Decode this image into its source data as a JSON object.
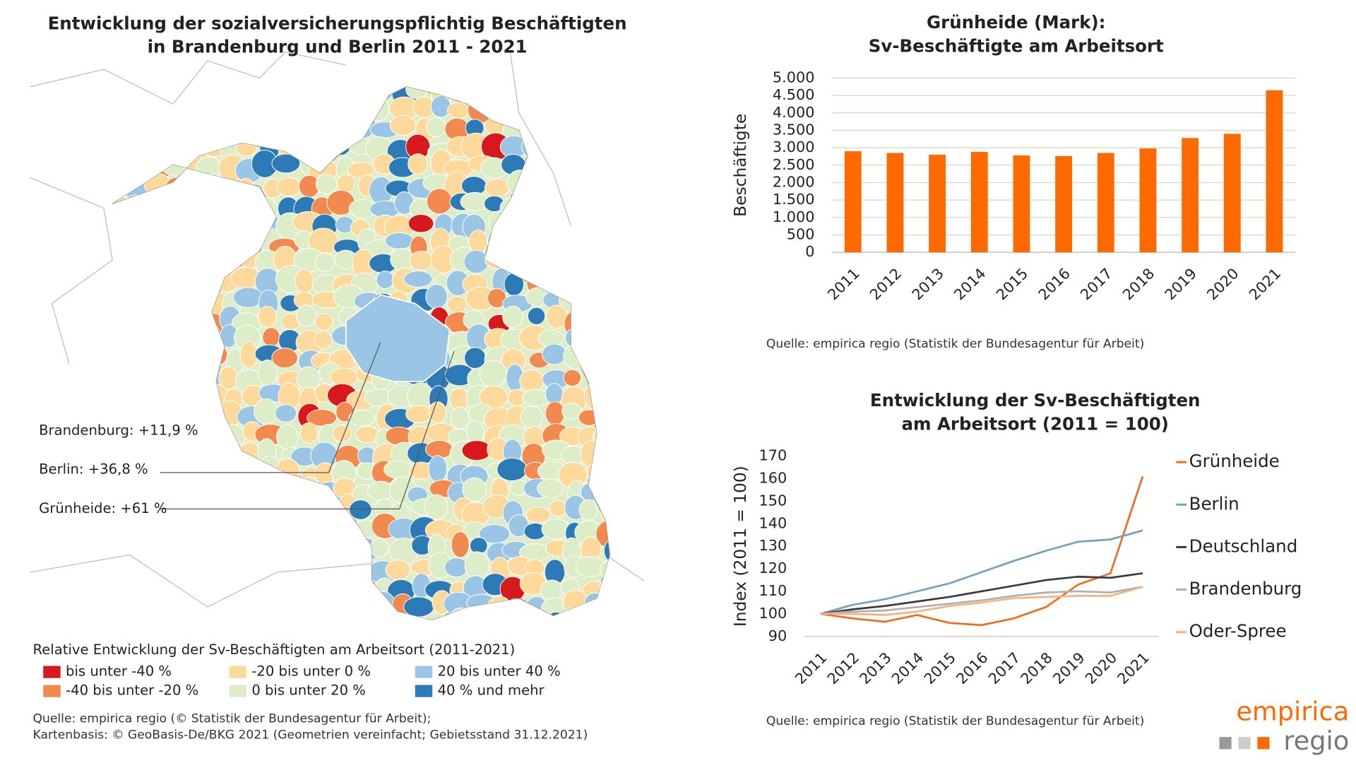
{
  "map": {
    "title": [
      "Entwicklung der sozialversicherungspflichtig Beschäftigten",
      "in Brandenburg und Berlin 2011 - 2021"
    ],
    "annotations": [
      "Brandenburg: +11,9 %",
      "Berlin: +36,8 %",
      "Grünheide: +61 %"
    ],
    "legend": {
      "title": "Relative Entwicklung der Sv-Beschäftigten am Arbeitsort (2011-2021)",
      "items": [
        {
          "label": "bis unter -40 %",
          "color": "#d7191c"
        },
        {
          "label": "-40 bis unter -20 %",
          "color": "#f28a50"
        },
        {
          "label": "-20 bis unter 0 %",
          "color": "#fdd99b"
        },
        {
          "label": "0 bis unter 20 %",
          "color": "#dcedc8"
        },
        {
          "label": "20 bis unter 40 %",
          "color": "#9ac5e5"
        },
        {
          "label": "40 % und mehr",
          "color": "#2c7bb6"
        }
      ]
    },
    "source": [
      "Quelle: empirica regio (© Statistik der Bundesagentur für Arbeit);",
      "Kartenbasis: © GeoBasis-De/BKG 2021 (Geometrien vereinfacht; Gebietsstand 31.12.2021)"
    ]
  },
  "chart_data": [
    {
      "type": "bar",
      "title": [
        "Grünheide (Mark):",
        "Sv-Beschäftigte am Arbeitsort"
      ],
      "y_label": "Beschäftigte",
      "categories": [
        "2011",
        "2012",
        "2013",
        "2014",
        "2015",
        "2016",
        "2017",
        "2018",
        "2019",
        "2020",
        "2021"
      ],
      "values": [
        2900,
        2850,
        2800,
        2880,
        2780,
        2760,
        2850,
        2980,
        3280,
        3400,
        4650
      ],
      "color": "#ff6a00",
      "ylim": [
        0,
        5000
      ],
      "yticks": [
        0,
        500,
        {
          "value": 1000,
          "label": "1.000"
        },
        {
          "value": 1500,
          "label": "1.500"
        },
        {
          "value": 2000,
          "label": "2.000"
        },
        {
          "value": 2500,
          "label": "2.500"
        },
        {
          "value": 3000,
          "label": "3.000"
        },
        {
          "value": 3500,
          "label": "3.500"
        },
        {
          "value": 4000,
          "label": "4.000"
        },
        {
          "value": 4500,
          "label": "4.500"
        },
        {
          "value": 5000,
          "label": "5.000"
        }
      ],
      "grid": true,
      "source": "Quelle: empirica regio (Statistik der Bundesagentur für Arbeit)"
    },
    {
      "type": "line",
      "title": [
        "Entwicklung der Sv-Beschäftigten",
        "am Arbeitsort (2011 = 100)"
      ],
      "y_label": "Index (2011 = 100)",
      "categories": [
        "2011",
        "2012",
        "2013",
        "2014",
        "2015",
        "2016",
        "2017",
        "2018",
        "2019",
        "2020",
        "2021"
      ],
      "series": [
        {
          "name": "Grünheide",
          "color": "#f26b1d",
          "values": [
            100,
            98,
            96.5,
            99.5,
            96,
            95,
            98,
            103,
            113,
            118,
            161
          ]
        },
        {
          "name": "Berlin",
          "color": "#6fa3bf",
          "values": [
            100,
            104,
            106.5,
            110,
            113.5,
            118.5,
            123.5,
            128,
            132,
            133,
            137
          ]
        },
        {
          "name": "Deutschland",
          "color": "#3a3a3a",
          "values": [
            100,
            102,
            103.5,
            105.5,
            107.5,
            110,
            112.5,
            115,
            116.5,
            116,
            118
          ]
        },
        {
          "name": "Brandenburg",
          "color": "#b0b0b0",
          "values": [
            100,
            101,
            101.5,
            103,
            104.5,
            106,
            108,
            109.5,
            110,
            109.5,
            112
          ]
        },
        {
          "name": "Oder-Spree",
          "color": "#f8b080",
          "values": [
            100,
            100,
            99.5,
            101,
            103.5,
            105,
            107,
            107.5,
            108,
            108,
            112
          ]
        }
      ],
      "ylim": [
        90,
        170
      ],
      "yticks": [
        90,
        100,
        110,
        120,
        130,
        140,
        150,
        160,
        170
      ],
      "grid": false,
      "legend": "right",
      "source": "Quelle: empirica regio (Statistik der Bundesagentur für Arbeit)"
    }
  ],
  "logo": {
    "brand": "empirica",
    "sub": "regio"
  }
}
